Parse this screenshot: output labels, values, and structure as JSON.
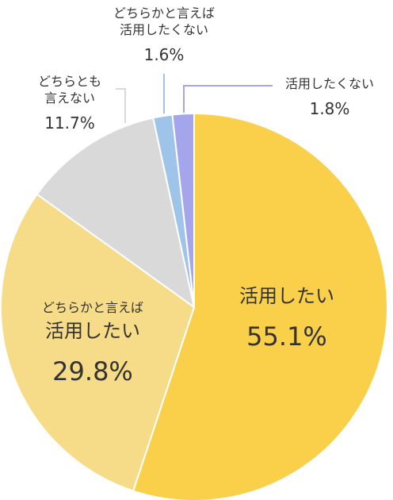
{
  "chart_data": {
    "type": "pie",
    "slices": [
      {
        "label": "活用したい",
        "value": 55.1,
        "display": "55.1%",
        "color": "#fad04a"
      },
      {
        "label_lines": [
          "どちらかと言えば",
          "活用したい"
        ],
        "value": 29.8,
        "display": "29.8%",
        "color": "#f6dc88"
      },
      {
        "label_lines": [
          "どちらとも",
          "言えない"
        ],
        "value": 11.7,
        "display": "11.7%",
        "color": "#d9d9d9"
      },
      {
        "label_lines": [
          "どちらかと言えば",
          "活用したくない"
        ],
        "value": 1.6,
        "display": "1.6%",
        "color": "#9fc4ea"
      },
      {
        "label": "活用したくない",
        "value": 1.8,
        "display": "1.8%",
        "color": "#a4a5ea"
      }
    ]
  }
}
